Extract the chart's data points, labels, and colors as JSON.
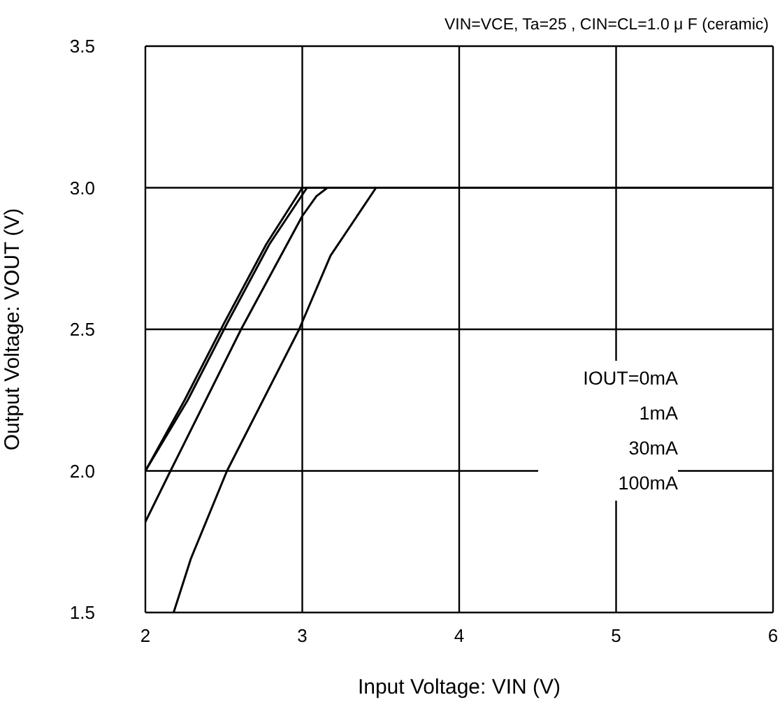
{
  "chart_data": {
    "type": "line",
    "title": "VIN=VCE, Ta=25 , CIN=CL=1.0 μ F (ceramic)",
    "xlabel": "Input Voltage: VIN (V)",
    "ylabel": "Output Voltage: VOUT (V)",
    "annotations": [
      "IOUT=0mA",
      "1mA",
      "30mA",
      "100mA"
    ],
    "series": [
      {
        "color": "#000000",
        "x": [
          2,
          2.25,
          2.5,
          2.77,
          3,
          6
        ],
        "values": [
          2.0,
          2.25,
          2.52,
          2.8,
          3.0,
          3.0
        ]
      },
      {
        "color": "#000000",
        "x": [
          2,
          2.27,
          2.52,
          2.79,
          3.03,
          6
        ],
        "values": [
          2.0,
          2.25,
          2.52,
          2.8,
          3.0,
          3.0
        ]
      },
      {
        "color": "#000000",
        "x": [
          2,
          2.16,
          2.61,
          3.0,
          3.09,
          3.16,
          6
        ],
        "values": [
          1.82,
          2.0,
          2.5,
          2.9,
          2.97,
          3.0,
          3.0
        ]
      },
      {
        "color": "#000000",
        "x": [
          2.18,
          2.29,
          2.52,
          2.98,
          3.18,
          3.47,
          6
        ],
        "values": [
          1.5,
          1.69,
          2.0,
          2.5,
          2.76,
          3.0,
          3.0
        ]
      }
    ],
    "xlim": [
      2,
      6
    ],
    "xticks": [
      2,
      3,
      4,
      5,
      6
    ],
    "ylim": [
      1.5,
      3.5
    ],
    "yticks": [
      1.5,
      {
        "value": 2,
        "label": "2.0"
      },
      2.5,
      {
        "value": 3,
        "label": "3.0"
      },
      3.5
    ],
    "grid": true,
    "marker": "none",
    "line_style": "solid"
  }
}
